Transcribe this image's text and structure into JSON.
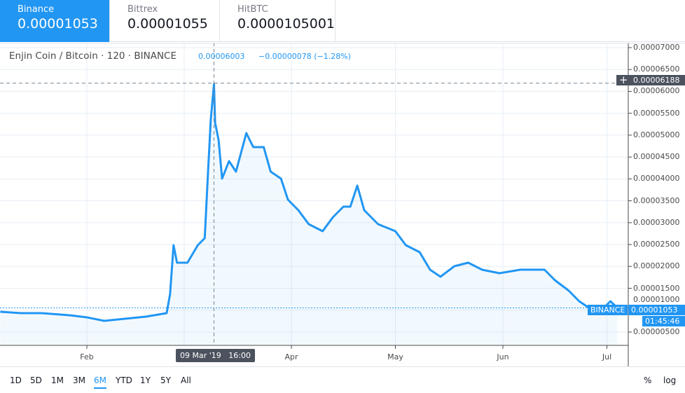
{
  "exchanges": [
    {
      "name": "Binance",
      "price": "0.00001053",
      "active": true
    },
    {
      "name": "Bittrex",
      "price": "0.00001055"
    },
    {
      "name": "HitBTC",
      "price": "0.0000105001"
    }
  ],
  "legend": {
    "symbol": "Enjin Coin / Bitcoin · 120 · BINANCE",
    "price": "0.00006003",
    "change": "−0.00000078 (−1.28%)"
  },
  "crosshair": {
    "price_label": "0.00006188",
    "time_label": "09 Mar '19   16:00"
  },
  "last_price": {
    "exchange_label": "BINANCE",
    "price_label": "0.00001053",
    "countdown": "01:45:46"
  },
  "ranges": [
    "1D",
    "5D",
    "1M",
    "3M",
    "6M",
    "YTD",
    "1Y",
    "5Y",
    "All"
  ],
  "active_range": "6M",
  "scale_buttons": {
    "percent": "%",
    "log": "log"
  },
  "colors": {
    "accent": "#2196f3",
    "line": "#2196f3",
    "crosshair_label": "#4c525e"
  },
  "chart_data": {
    "type": "area",
    "x_ticks": [
      {
        "label": "Feb",
        "date": "2019-02-01"
      },
      {
        "label": "Apr",
        "date": "2019-04-01"
      },
      {
        "label": "May",
        "date": "2019-05-01"
      },
      {
        "label": "Jun",
        "date": "2019-06-01"
      },
      {
        "label": "Jul",
        "date": "2019-07-01"
      }
    ],
    "y_ticks": [
      "0.00007000",
      "0.00006500",
      "0.00006000",
      "0.00005500",
      "0.00005000",
      "0.00004500",
      "0.00004000",
      "0.00003500",
      "0.00003000",
      "0.00002500",
      "0.00002000",
      "0.00001500",
      "0.00001000",
      "0.00000500"
    ],
    "ylim": [
      2.8e-06,
      7.1e-05
    ],
    "grid": true,
    "points": [
      [
        "2019-01-07",
        9.64e-06
      ],
      [
        "2019-01-13",
        9.32e-06
      ],
      [
        "2019-01-19",
        9.32e-06
      ],
      [
        "2019-01-27",
        8.84e-06
      ],
      [
        "2019-02-01",
        8.36e-06
      ],
      [
        "2019-02-06",
        7.56e-06
      ],
      [
        "2019-02-12",
        8.04e-06
      ],
      [
        "2019-02-18",
        8.52e-06
      ],
      [
        "2019-02-24",
        9.32e-06
      ],
      [
        "2019-02-25",
        1.364e-05
      ],
      [
        "2019-02-26",
        2.485e-05
      ],
      [
        "2019-02-27",
        2.085e-05
      ],
      [
        "2019-03-02",
        2.085e-05
      ],
      [
        "2019-03-05",
        2.485e-05
      ],
      [
        "2019-03-07",
        2.645e-05
      ],
      [
        "2019-03-08T00:00",
        4.246e-05
      ],
      [
        "2019-03-08T18:00",
        5.367e-05
      ],
      [
        "2019-03-09T16:00",
        6.167e-05
      ],
      [
        "2019-03-10",
        5.287e-05
      ],
      [
        "2019-03-11",
        4.887e-05
      ],
      [
        "2019-03-12",
        4.006e-05
      ],
      [
        "2019-03-14",
        4.406e-05
      ],
      [
        "2019-03-16",
        4.166e-05
      ],
      [
        "2019-03-19",
        5.047e-05
      ],
      [
        "2019-03-21",
        4.727e-05
      ],
      [
        "2019-03-24",
        4.727e-05
      ],
      [
        "2019-03-26",
        4.166e-05
      ],
      [
        "2019-03-29",
        4.006e-05
      ],
      [
        "2019-03-31",
        3.526e-05
      ],
      [
        "2019-04-03",
        3.286e-05
      ],
      [
        "2019-04-06",
        2.965e-05
      ],
      [
        "2019-04-10",
        2.805e-05
      ],
      [
        "2019-04-13",
        3.126e-05
      ],
      [
        "2019-04-16",
        3.366e-05
      ],
      [
        "2019-04-18",
        3.366e-05
      ],
      [
        "2019-04-20",
        3.846e-05
      ],
      [
        "2019-04-22",
        3.286e-05
      ],
      [
        "2019-04-26",
        2.965e-05
      ],
      [
        "2019-05-01",
        2.805e-05
      ],
      [
        "2019-05-04",
        2.485e-05
      ],
      [
        "2019-05-08",
        2.325e-05
      ],
      [
        "2019-05-11",
        1.925e-05
      ],
      [
        "2019-05-14",
        1.765e-05
      ],
      [
        "2019-05-18",
        2.005e-05
      ],
      [
        "2019-05-22",
        2.085e-05
      ],
      [
        "2019-05-26",
        1.925e-05
      ],
      [
        "2019-05-31",
        1.845e-05
      ],
      [
        "2019-06-06",
        1.925e-05
      ],
      [
        "2019-06-13",
        1.925e-05
      ],
      [
        "2019-06-16",
        1.685e-05
      ],
      [
        "2019-06-20",
        1.444e-05
      ],
      [
        "2019-06-23",
        1.204e-05
      ],
      [
        "2019-06-26",
        1.044e-05
      ],
      [
        "2019-06-30",
        1.044e-05
      ],
      [
        "2019-07-02",
        1.204e-05
      ],
      [
        "2019-07-04",
        1.053e-05
      ]
    ]
  }
}
